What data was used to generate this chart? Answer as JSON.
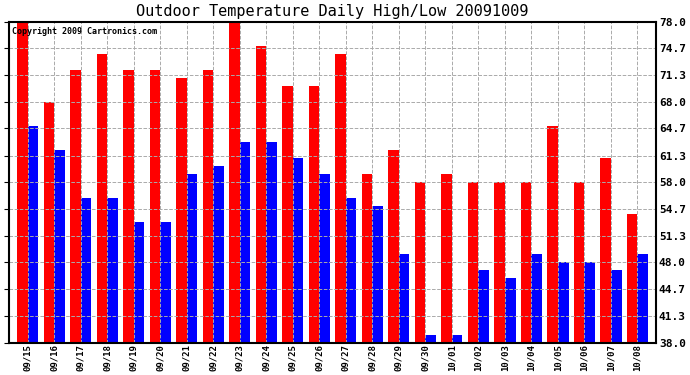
{
  "title": "Outdoor Temperature Daily High/Low 20091009",
  "copyright": "Copyright 2009 Cartronics.com",
  "yticks": [
    38.0,
    41.3,
    44.7,
    48.0,
    51.3,
    54.7,
    58.0,
    61.3,
    64.7,
    68.0,
    71.3,
    74.7,
    78.0
  ],
  "ylim": [
    38.0,
    78.0
  ],
  "dates": [
    "09/15",
    "09/16",
    "09/17",
    "09/18",
    "09/19",
    "09/20",
    "09/21",
    "09/22",
    "09/23",
    "09/24",
    "09/25",
    "09/26",
    "09/27",
    "09/28",
    "09/29",
    "09/30",
    "10/01",
    "10/02",
    "10/03",
    "10/04",
    "10/05",
    "10/06",
    "10/07",
    "10/08"
  ],
  "highs": [
    78.0,
    68.0,
    72.0,
    74.0,
    72.0,
    72.0,
    71.0,
    72.0,
    78.0,
    75.0,
    70.0,
    70.0,
    74.0,
    59.0,
    62.0,
    58.0,
    59.0,
    58.0,
    58.0,
    58.0,
    65.0,
    58.0,
    61.0,
    54.0
  ],
  "lows": [
    65.0,
    62.0,
    56.0,
    56.0,
    53.0,
    53.0,
    59.0,
    60.0,
    63.0,
    63.0,
    61.0,
    59.0,
    56.0,
    55.0,
    49.0,
    39.0,
    39.0,
    47.0,
    46.0,
    49.0,
    48.0,
    48.0,
    47.0,
    49.0
  ],
  "high_color": "#ff0000",
  "low_color": "#0000ff",
  "bg_color": "#ffffff",
  "plot_bg_color": "#ffffff",
  "grid_color": "#aaaaaa",
  "title_fontsize": 11,
  "bar_width": 0.4,
  "figwidth": 6.9,
  "figheight": 3.75,
  "dpi": 100
}
